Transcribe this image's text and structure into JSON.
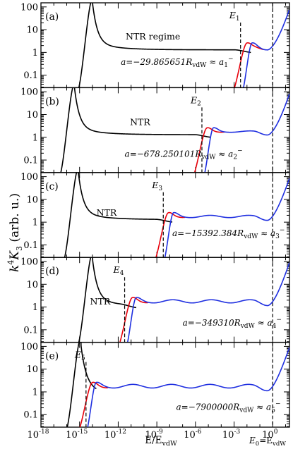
{
  "chart_data": {
    "type": "line",
    "ylabel": {
      "main": "k",
      "sup": "4",
      "mid": "K",
      "sub": "3",
      "tail": " (arb. u.)"
    },
    "xlabel": "E/E",
    "xlabel_sub": "vdW",
    "x_ticks": [
      {
        "exp": -18,
        "base": "10",
        "pow": "-18"
      },
      {
        "exp": -15,
        "base": "10",
        "pow": "-15"
      },
      {
        "exp": -12,
        "base": "10",
        "pow": "-12"
      },
      {
        "exp": -9,
        "base": "10",
        "pow": "-9"
      },
      {
        "exp": -6,
        "base": "10",
        "pow": "-6"
      },
      {
        "exp": -3,
        "base": "10",
        "pow": "-3"
      },
      {
        "exp": 0,
        "base": "10",
        "pow": "0"
      }
    ],
    "y_ticks": [
      {
        "v": 100,
        "label": "100"
      },
      {
        "v": 10,
        "label": "10"
      },
      {
        "v": 1,
        "label": "1"
      },
      {
        "v": 0.1,
        "label": "0.1"
      }
    ],
    "xlim_log10": [
      -18,
      1.3
    ],
    "ylim_log10": [
      -1.55,
      2.18
    ],
    "scale": "log-log",
    "e0_label": {
      "pre": "E",
      "sub0": "0",
      "mid": "=E",
      "sub1": "vdW"
    },
    "colors": {
      "ntr": "#000000",
      "red": "#e8000b",
      "blue": "#1f2fe0",
      "frame": "#000000"
    },
    "panels": [
      {
        "label": "(a)",
        "ntr_text": "NTR regime",
        "a_pre": "a=−29.865651R",
        "a_sub": "vdW",
        "a_mid": " ≈ a",
        "a_idx": "1",
        "a_sup": "−",
        "marker": {
          "base": "E",
          "sub": "1",
          "x_log10": -2.5
        },
        "peak_x_log10": -14.0,
        "plateau_y": 1.3,
        "red_onset_log10": -3.3,
        "blue_onset_log10": -2.5,
        "osc_amp": 0.02,
        "e0_log10": 0
      },
      {
        "label": "(b)",
        "ntr_text": "NTR",
        "a_pre": "a=−678.250101R",
        "a_sub": "vdW",
        "a_mid": " ≈ a",
        "a_idx": "2",
        "a_sup": "−",
        "marker": {
          "base": "E",
          "sub": "2",
          "x_log10": -5.5
        },
        "peak_x_log10": -15.4,
        "plateau_y": 1.3,
        "red_onset_log10": -6.4,
        "blue_onset_log10": -5.5,
        "osc_amp": 0.03,
        "e0_log10": 0
      },
      {
        "label": "(c)",
        "ntr_text": "NTR",
        "a_pre": "a=−15392.384R",
        "a_sub": "vdW",
        "a_mid": " ≈ a",
        "a_idx": "3",
        "a_sup": "−",
        "marker": {
          "base": "E",
          "sub": "3",
          "x_log10": -8.5
        },
        "peak_x_log10": -15.1,
        "plateau_y": 1.3,
        "red_onset_log10": -9.4,
        "blue_onset_log10": -8.6,
        "osc_amp": 0.05,
        "e0_log10": 0
      },
      {
        "label": "(d)",
        "ntr_text": "NTR",
        "a_pre": "a=−349310R",
        "a_sub": "vdW",
        "a_mid": " ≈ a",
        "a_idx": "4",
        "a_sup": "−",
        "marker": {
          "base": "E",
          "sub": "4",
          "x_log10": -11.5
        },
        "peak_x_log10": -14.0,
        "plateau_y": 1.1,
        "red_onset_log10": -12.2,
        "blue_onset_log10": -11.5,
        "osc_amp": 0.07,
        "e0_log10": 0
      },
      {
        "label": "(e)",
        "ntr_text": "",
        "a_pre": "a=−7900000R",
        "a_sub": "vdW",
        "a_mid": " ≈ a",
        "a_idx": "5",
        "a_sup": "−",
        "marker": {
          "base": "E",
          "sub": "5",
          "x_log10": -14.5
        },
        "peak_x_log10": -14.9,
        "plateau_y": 1.05,
        "red_onset_log10": -15.3,
        "blue_onset_log10": -14.6,
        "osc_amp": 0.08,
        "e0_log10": 0
      }
    ]
  }
}
